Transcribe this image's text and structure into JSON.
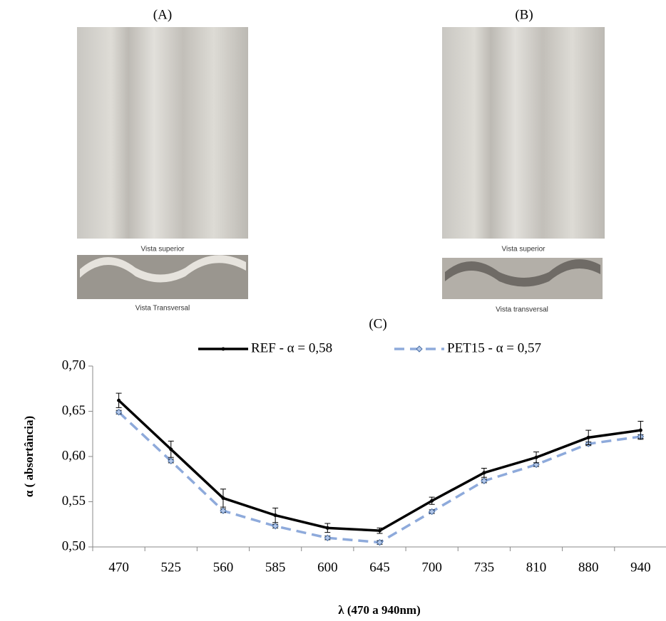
{
  "panels": [
    {
      "label": "(A)",
      "top_caption": "Vista superior",
      "cross_caption": "Vista Transversal"
    },
    {
      "label": "(B)",
      "top_caption": "Vista superior",
      "cross_caption": "Vista transversal"
    }
  ],
  "chart_data": {
    "type": "line",
    "title": "(C)",
    "x_label": "λ (470 a 940nm)",
    "y_label": "α ( absortância)",
    "categories": [
      "470",
      "525",
      "560",
      "585",
      "600",
      "645",
      "700",
      "735",
      "810",
      "880",
      "940"
    ],
    "series": [
      {
        "name": "REF - α = 0,58",
        "color": "#000000",
        "dashed": false,
        "values": [
          0.662,
          0.608,
          0.554,
          0.535,
          0.521,
          0.518,
          0.551,
          0.582,
          0.599,
          0.621,
          0.629
        ],
        "errors": [
          0.008,
          0.009,
          0.01,
          0.008,
          0.005,
          0.003,
          0.004,
          0.005,
          0.006,
          0.008,
          0.01
        ]
      },
      {
        "name": "PET15 - α = 0,57",
        "color": "#8eaadb",
        "dashed": true,
        "values": [
          0.649,
          0.595,
          0.54,
          0.523,
          0.51,
          0.505,
          0.539,
          0.573,
          0.591,
          0.614,
          0.622
        ],
        "errors": [
          0.002,
          0.002,
          0.002,
          0.002,
          0.002,
          0.002,
          0.002,
          0.002,
          0.002,
          0.002,
          0.002
        ]
      }
    ],
    "ylim": [
      0.5,
      0.7
    ],
    "yticks": [
      {
        "value": 0.5,
        "label": "0,50"
      },
      {
        "value": 0.55,
        "label": "0,55"
      },
      {
        "value": 0.6,
        "label": "0,60"
      },
      {
        "value": 0.65,
        "label": "0,65"
      },
      {
        "value": 0.7,
        "label": "0,70"
      }
    ]
  }
}
